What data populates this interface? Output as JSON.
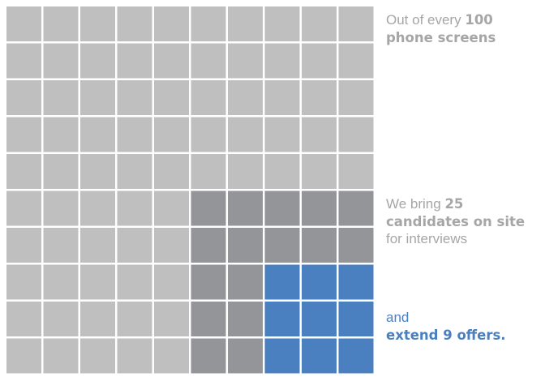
{
  "chart_data": {
    "type": "waffle",
    "rows": 10,
    "cols": 10,
    "total": 100,
    "stages": [
      {
        "name": "phone screens",
        "count": 100,
        "color": "#bfbfbf"
      },
      {
        "name": "candidates on site",
        "count": 25,
        "color": "#939598"
      },
      {
        "name": "offers",
        "count": 9,
        "color": "#4a80c0"
      }
    ],
    "annotations": {
      "total": {
        "prefix": "Out of every",
        "value": "100",
        "suffix": "phone screens"
      },
      "onsite": {
        "prefix": "We bring",
        "value": "25",
        "suffix": "candidates on site",
        "tail": "for interviews"
      },
      "offers": {
        "prefix": "and",
        "value": "extend 9 offers."
      }
    }
  }
}
